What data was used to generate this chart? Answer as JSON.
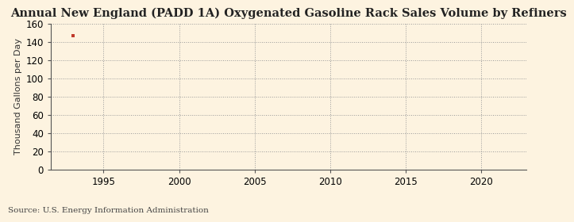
{
  "title": "Annual New England (PADD 1A) Oxygenated Gasoline Rack Sales Volume by Refiners",
  "ylabel": "Thousand Gallons per Day",
  "source": "Source: U.S. Energy Information Administration",
  "background_color": "#fdf3e0",
  "plot_area_color": "#fdf3e0",
  "data_x": [
    1993
  ],
  "data_y": [
    147
  ],
  "data_color": "#c0392b",
  "xlim": [
    1991.5,
    2023
  ],
  "ylim": [
    0,
    160
  ],
  "yticks": [
    0,
    20,
    40,
    60,
    80,
    100,
    120,
    140,
    160
  ],
  "xticks": [
    1995,
    2000,
    2005,
    2010,
    2015,
    2020
  ],
  "grid_color": "#999999",
  "spine_color": "#555555",
  "title_fontsize": 10.5,
  "label_fontsize": 8,
  "tick_fontsize": 8.5,
  "source_fontsize": 7.5
}
